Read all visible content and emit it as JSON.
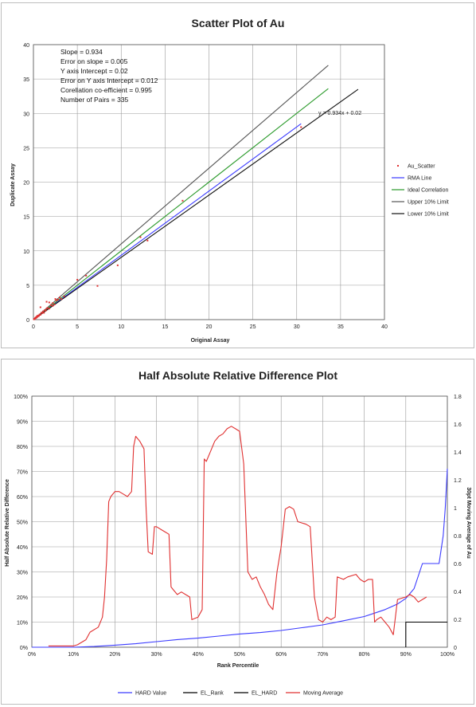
{
  "chart_data": [
    {
      "type": "scatter",
      "title": "Scatter Plot of Au",
      "xlabel": "Original Assay",
      "ylabel": "Duplicate Assay",
      "xlim": [
        0,
        40
      ],
      "ylim": [
        0,
        40
      ],
      "xticks": [
        "0",
        "5",
        "10",
        "15",
        "20",
        "25",
        "30",
        "35",
        "40"
      ],
      "yticks": [
        "0",
        "5",
        "10",
        "15",
        "20",
        "25",
        "30",
        "35",
        "40"
      ],
      "grid": true,
      "legend_position": "right",
      "stats": [
        "Slope = 0.934",
        "Error on slope = 0.005",
        "Y axis Intercept = 0.02",
        "Error on Y axis Intercept = 0.012",
        "Corellation co-efficient = 0.995",
        "Number of Pairs = 335"
      ],
      "equation_label": "y = 0.934x + 0.02",
      "series": [
        {
          "name": "Au_Scatter",
          "color": "#e03030",
          "kind": "points",
          "points": [
            [
              0.05,
              0.05
            ],
            [
              0.1,
              0.12
            ],
            [
              0.15,
              0.1
            ],
            [
              0.2,
              0.25
            ],
            [
              0.25,
              0.2
            ],
            [
              0.3,
              0.35
            ],
            [
              0.35,
              0.3
            ],
            [
              0.4,
              0.5
            ],
            [
              0.45,
              0.4
            ],
            [
              0.5,
              0.55
            ],
            [
              0.55,
              0.6
            ],
            [
              0.6,
              0.5
            ],
            [
              0.7,
              0.75
            ],
            [
              0.8,
              0.7
            ],
            [
              0.9,
              1.0
            ],
            [
              1.0,
              0.95
            ],
            [
              1.1,
              1.2
            ],
            [
              1.2,
              1.0
            ],
            [
              1.3,
              1.4
            ],
            [
              1.4,
              1.3
            ],
            [
              1.5,
              1.6
            ],
            [
              1.6,
              1.7
            ],
            [
              1.8,
              1.6
            ],
            [
              2.0,
              2.1
            ],
            [
              2.2,
              2.4
            ],
            [
              2.4,
              2.2
            ],
            [
              2.6,
              2.8
            ],
            [
              2.8,
              2.9
            ],
            [
              3.0,
              3.2
            ],
            [
              3.2,
              3.0
            ],
            [
              0.8,
              1.8
            ],
            [
              1.5,
              2.6
            ],
            [
              1.8,
              2.5
            ],
            [
              2.2,
              2.0
            ],
            [
              2.5,
              3.0
            ],
            [
              3.5,
              3.4
            ],
            [
              5.0,
              5.8
            ],
            [
              6.0,
              6.4
            ],
            [
              7.3,
              4.9
            ],
            [
              9.6,
              7.9
            ],
            [
              12.2,
              12.0
            ],
            [
              13.0,
              11.5
            ],
            [
              17.0,
              17.3
            ],
            [
              30.5,
              28.0
            ]
          ]
        },
        {
          "name": "RMA Line",
          "color": "#3a3aff",
          "kind": "line",
          "points": [
            [
              0,
              0.02
            ],
            [
              30.5,
              28.5
            ]
          ]
        },
        {
          "name": "Ideal Correlation",
          "color": "#2a9a2a",
          "kind": "line",
          "points": [
            [
              0,
              0
            ],
            [
              33.6,
              33.6
            ]
          ]
        },
        {
          "name": "Upper 10% Limit",
          "color": "#555555",
          "kind": "line",
          "points": [
            [
              0,
              0
            ],
            [
              33.6,
              37.0
            ]
          ]
        },
        {
          "name": "Lower 10% Limit",
          "color": "#111111",
          "kind": "line",
          "points": [
            [
              0,
              0
            ],
            [
              37.0,
              33.5
            ]
          ]
        }
      ]
    },
    {
      "type": "line",
      "title": "Half Absolute Relative Difference Plot",
      "xlabel": "Rank Percentile",
      "ylabel": "Half Absolute Relative Difference",
      "y2label": "30pt Moving Average of Au",
      "xlim": [
        0,
        100
      ],
      "ylim": [
        0,
        100
      ],
      "y2lim": [
        0,
        1.8
      ],
      "xticks": [
        "0%",
        "10%",
        "20%",
        "30%",
        "40%",
        "50%",
        "60%",
        "70%",
        "80%",
        "90%",
        "100%"
      ],
      "yticks": [
        "0%",
        "10%",
        "20%",
        "30%",
        "40%",
        "50%",
        "60%",
        "70%",
        "80%",
        "90%",
        "100%"
      ],
      "y2ticks": [
        "0",
        "0.2",
        "0.4",
        "0.6",
        "0.8",
        "1",
        "1.2",
        "1.4",
        "1.6",
        "1.8"
      ],
      "grid": true,
      "legend_position": "bottom",
      "series": [
        {
          "name": "HARD Value",
          "color": "#3a3aff",
          "axis": "y2",
          "points": [
            [
              0,
              0
            ],
            [
              10,
              0
            ],
            [
              15,
              0.005
            ],
            [
              20,
              0.015
            ],
            [
              25,
              0.025
            ],
            [
              30,
              0.04
            ],
            [
              35,
              0.055
            ],
            [
              40,
              0.065
            ],
            [
              45,
              0.08
            ],
            [
              50,
              0.095
            ],
            [
              55,
              0.105
            ],
            [
              60,
              0.12
            ],
            [
              65,
              0.14
            ],
            [
              70,
              0.16
            ],
            [
              75,
              0.19
            ],
            [
              80,
              0.22
            ],
            [
              83,
              0.25
            ],
            [
              85,
              0.27
            ],
            [
              88,
              0.31
            ],
            [
              90,
              0.35
            ],
            [
              92,
              0.42
            ],
            [
              94,
              0.6
            ],
            [
              96,
              0.6
            ],
            [
              98,
              0.6
            ],
            [
              99,
              0.8
            ],
            [
              99.5,
              1.0
            ],
            [
              100,
              1.28
            ]
          ]
        },
        {
          "name": "EL_Rank",
          "color": "#000000",
          "axis": "y2",
          "points": [
            [
              90,
              0
            ],
            [
              90,
              0.18
            ],
            [
              100,
              0.18
            ]
          ]
        },
        {
          "name": "EL_HARD",
          "color": "#000000",
          "axis": "y2",
          "points": [
            [
              90,
              0.18
            ],
            [
              100,
              0.18
            ]
          ]
        },
        {
          "name": "Moving Average",
          "color": "#e03030",
          "axis": "y",
          "points": [
            [
              4,
              0.5
            ],
            [
              10,
              0.5
            ],
            [
              11,
              1
            ],
            [
              13,
              3
            ],
            [
              14,
              6
            ],
            [
              16,
              8
            ],
            [
              17,
              12
            ],
            [
              17.5,
              20
            ],
            [
              18,
              35
            ],
            [
              18.5,
              58
            ],
            [
              19,
              60
            ],
            [
              20,
              62
            ],
            [
              21,
              62
            ],
            [
              22,
              61
            ],
            [
              23,
              60
            ],
            [
              24,
              62
            ],
            [
              24.5,
              80
            ],
            [
              25,
              84
            ],
            [
              26,
              82
            ],
            [
              27,
              79
            ],
            [
              27.5,
              55
            ],
            [
              28,
              38
            ],
            [
              29,
              37
            ],
            [
              29.5,
              48
            ],
            [
              30,
              48
            ],
            [
              31,
              47
            ],
            [
              32,
              46
            ],
            [
              33,
              45
            ],
            [
              33.5,
              24
            ],
            [
              34,
              23
            ],
            [
              35,
              21
            ],
            [
              36,
              22
            ],
            [
              37,
              21
            ],
            [
              38,
              20
            ],
            [
              38.5,
              11
            ],
            [
              40,
              12
            ],
            [
              41,
              15
            ],
            [
              41.5,
              75
            ],
            [
              42,
              74
            ],
            [
              43,
              78
            ],
            [
              44,
              82
            ],
            [
              45,
              84
            ],
            [
              46,
              85
            ],
            [
              47,
              87
            ],
            [
              48,
              88
            ],
            [
              49,
              87
            ],
            [
              50,
              86
            ],
            [
              51,
              73
            ],
            [
              52,
              30
            ],
            [
              53,
              27
            ],
            [
              54,
              28
            ],
            [
              55,
              24
            ],
            [
              56,
              21
            ],
            [
              57,
              17
            ],
            [
              58,
              15
            ],
            [
              59,
              30
            ],
            [
              60,
              40
            ],
            [
              61,
              55
            ],
            [
              62,
              56
            ],
            [
              63,
              55
            ],
            [
              64,
              50
            ],
            [
              66,
              49
            ],
            [
              67,
              48
            ],
            [
              68,
              20
            ],
            [
              69,
              11
            ],
            [
              70,
              10
            ],
            [
              71,
              12
            ],
            [
              72,
              11
            ],
            [
              73,
              12
            ],
            [
              73.5,
              28
            ],
            [
              75,
              27
            ],
            [
              76,
              28
            ],
            [
              78,
              29
            ],
            [
              79,
              27
            ],
            [
              80,
              26
            ],
            [
              81,
              27
            ],
            [
              82,
              27
            ],
            [
              82.5,
              10
            ],
            [
              83,
              11
            ],
            [
              84,
              12
            ],
            [
              85,
              10
            ],
            [
              86,
              8
            ],
            [
              87,
              5
            ],
            [
              88,
              19
            ],
            [
              90,
              20
            ],
            [
              91,
              21
            ],
            [
              92,
              20
            ],
            [
              93,
              18
            ],
            [
              94,
              19
            ],
            [
              95,
              20
            ]
          ]
        }
      ]
    }
  ]
}
